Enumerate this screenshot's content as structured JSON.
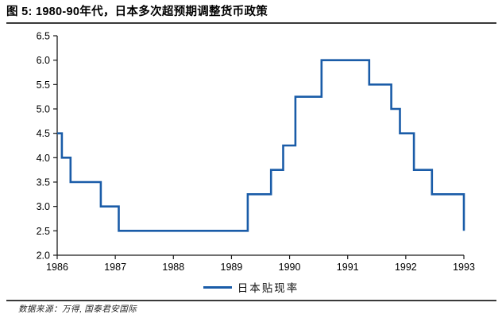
{
  "title": "图 5:  1980-90年代，日本多次超预期调整货币政策",
  "legend": {
    "label": "日本贴现率"
  },
  "footer": {
    "source": "数据来源：万得, 国泰君安国际"
  },
  "colors": {
    "line": "#1A5CA8",
    "axis": "#1a1a1a",
    "tick_text": "#000000",
    "rule": "#3a3a3a"
  },
  "chart_data": {
    "type": "line",
    "subtype": "step",
    "title": "图 5: 1980-90年代，日本多次超预期调整货币政策",
    "xlabel": "",
    "ylabel": "",
    "xlim": [
      1986,
      1993
    ],
    "ylim": [
      2.0,
      6.5
    ],
    "x_ticks": [
      1986,
      1987,
      1988,
      1989,
      1990,
      1991,
      1992,
      1993
    ],
    "y_ticks": [
      2.0,
      2.5,
      3.0,
      3.5,
      4.0,
      4.5,
      5.0,
      5.5,
      6.0,
      6.5
    ],
    "grid": false,
    "legend_position": "bottom-center",
    "series": [
      {
        "name": "日本贴现率",
        "color": "#1A5CA8",
        "step_points": [
          [
            1986.0,
            4.5
          ],
          [
            1986.08,
            4.0
          ],
          [
            1986.23,
            3.5
          ],
          [
            1986.75,
            3.0
          ],
          [
            1987.06,
            2.5
          ],
          [
            1989.28,
            3.25
          ],
          [
            1989.68,
            3.75
          ],
          [
            1989.89,
            4.25
          ],
          [
            1990.1,
            5.25
          ],
          [
            1990.55,
            6.0
          ],
          [
            1991.37,
            5.5
          ],
          [
            1991.75,
            5.0
          ],
          [
            1991.9,
            4.5
          ],
          [
            1992.14,
            3.75
          ],
          [
            1992.45,
            3.25
          ],
          [
            1993.0,
            2.5
          ]
        ]
      }
    ]
  }
}
